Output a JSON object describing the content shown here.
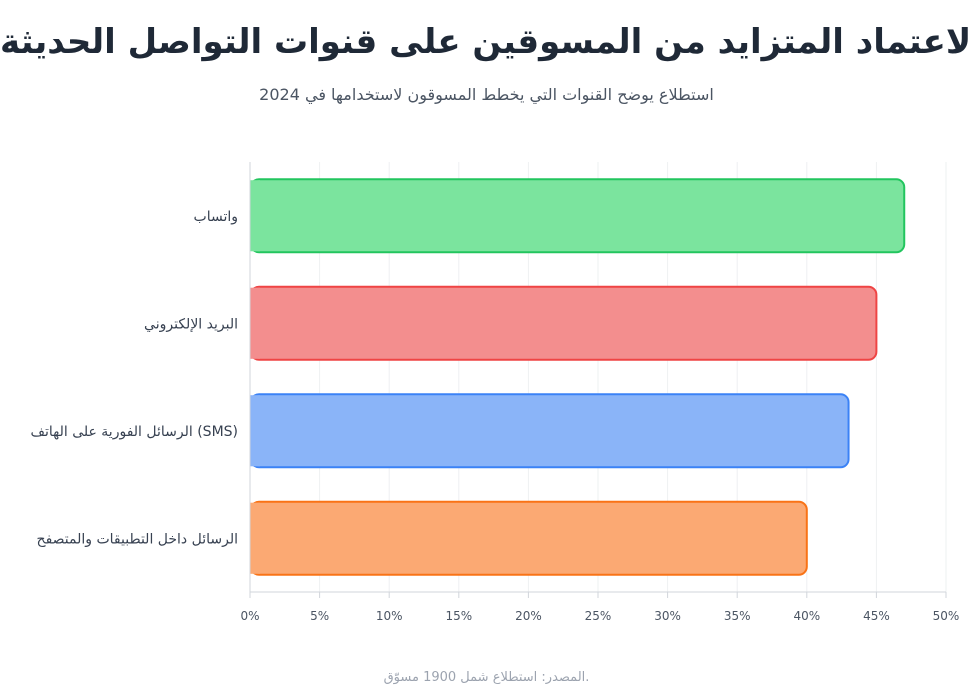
{
  "title": "الاعتماد المتزايد من المسوقين على قنوات التواصل الحديثة",
  "subtitle": "استطلاع يوضح القنوات التي يخطط المسوقون لاستخدامها في 2024",
  "source": "المصدر: استطلاع شمل 1900 مسوّق.",
  "chart_data": {
    "type": "bar",
    "orientation": "horizontal",
    "categories": [
      "واتساب",
      "البريد الإلكتروني",
      "الرسائل الفورية على الهاتف (SMS)",
      "الرسائل داخل التطبيقات والمتصفح"
    ],
    "values": [
      47,
      45,
      43,
      40
    ],
    "unit": "%",
    "xlim": [
      0,
      50
    ],
    "xticks": [
      0,
      5,
      10,
      15,
      20,
      25,
      30,
      35,
      40,
      45,
      50
    ],
    "tick_labels": [
      "0%",
      "5%",
      "10%",
      "15%",
      "20%",
      "25%",
      "30%",
      "35%",
      "40%",
      "45%",
      "50%"
    ],
    "grid": true,
    "legend": "none",
    "colors": {
      "fill": [
        "#7be49e",
        "#f38e8e",
        "#8ab4f8",
        "#fba973"
      ],
      "stroke": [
        "#22c55e",
        "#ef4444",
        "#3b82f6",
        "#f97316"
      ]
    }
  }
}
